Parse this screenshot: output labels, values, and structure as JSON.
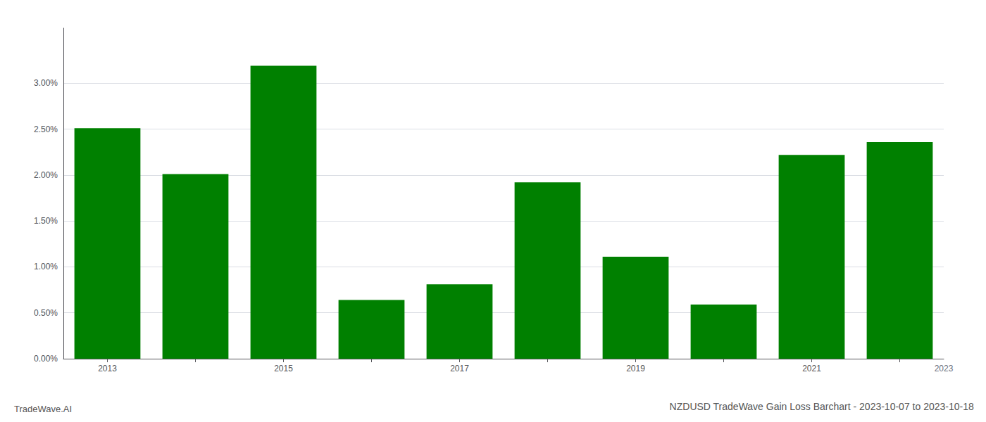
{
  "chart_data": {
    "type": "bar",
    "title": "NZDUSD TradeWave Gain Loss Barchart - 2023-10-07 to 2023-10-18",
    "annotations": [
      "TradeWave.AI",
      "2023"
    ],
    "categories": [
      "2013",
      null,
      "2015",
      null,
      "2017",
      null,
      "2019",
      null,
      "2021",
      null
    ],
    "values": [
      0.0251,
      0.0201,
      0.0319,
      0.0064,
      0.0081,
      0.0192,
      0.0111,
      0.0059,
      0.0222,
      0.0236
    ],
    "color": "#008000",
    "ylim": [
      0,
      0.036
    ],
    "yticks": [
      {
        "value": 0.0,
        "label": "0.00%"
      },
      {
        "value": 0.005,
        "label": "0.50%"
      },
      {
        "value": 0.01,
        "label": "1.00%"
      },
      {
        "value": 0.015,
        "label": "1.50%"
      },
      {
        "value": 0.02,
        "label": "2.00%"
      },
      {
        "value": 0.025,
        "label": "2.50%"
      },
      {
        "value": 0.03,
        "label": "3.00%"
      }
    ],
    "grid": true
  }
}
